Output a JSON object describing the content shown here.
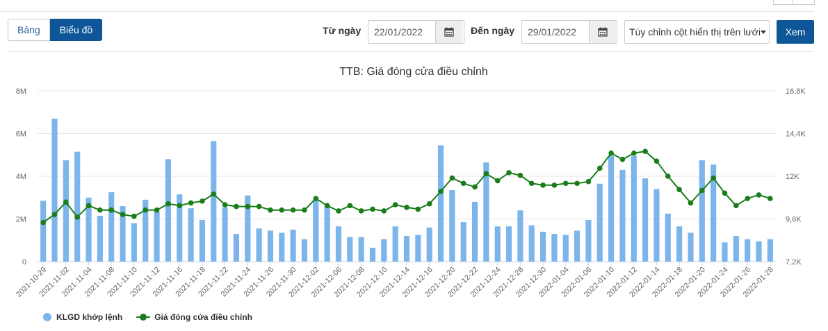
{
  "toolbar": {
    "tab_table": "Bảng",
    "tab_chart": "Biểu đồ",
    "from_label": "Từ ngày",
    "from_value": "22/01/2022",
    "to_label": "Đến ngày",
    "to_value": "29/01/2022",
    "column_select": "Tùy chỉnh cột hiển thị trên lưới",
    "view_button": "Xem"
  },
  "colors": {
    "accent": "#0e5697",
    "bar": "#7cb5ec",
    "line": "#1a7d1a"
  },
  "chart_data": {
    "type": "bar+line",
    "title": "TTB: Giá đóng cửa điều chỉnh",
    "y_left": {
      "min": 0,
      "max": 8000000,
      "ticks": [
        "0",
        "2M",
        "4M",
        "6M",
        "8M"
      ]
    },
    "y_right": {
      "min": 7200,
      "max": 16800,
      "ticks": [
        "7,2K",
        "9,6K",
        "12K",
        "14,4K",
        "16,8K"
      ]
    },
    "x_ticks": [
      "2021-10-29",
      "2021-11-02",
      "2021-11-04",
      "2021-11-08",
      "2021-11-10",
      "2021-11-12",
      "2021-11-16",
      "2021-11-18",
      "2021-11-22",
      "2021-11-24",
      "2021-11-26",
      "2021-11-30",
      "2021-12-02",
      "2021-12-06",
      "2021-12-08",
      "2021-12-10",
      "2021-12-14",
      "2021-12-16",
      "2021-12-20",
      "2021-12-22",
      "2021-12-24",
      "2021-12-28",
      "2021-12-30",
      "2022-01-04",
      "2022-01-06",
      "2022-01-10",
      "2022-01-12",
      "2022-01-14",
      "2022-01-18",
      "2022-01-20",
      "2022-01-24",
      "2022-01-26",
      "2022-01-28"
    ],
    "series": [
      {
        "name": "KLGD khớp lệnh",
        "type": "bar",
        "axis": "left",
        "values": [
          2850000,
          6700000,
          4750000,
          5150000,
          3000000,
          2150000,
          3250000,
          2600000,
          1800000,
          2900000,
          2350000,
          4800000,
          3150000,
          2500000,
          1950000,
          5650000,
          2550000,
          1300000,
          3100000,
          1550000,
          1450000,
          1350000,
          1500000,
          1050000,
          2900000,
          2600000,
          1650000,
          1150000,
          1150000,
          650000,
          1050000,
          1650000,
          1200000,
          1250000,
          1600000,
          5450000,
          3350000,
          1850000,
          2800000,
          4650000,
          1650000,
          1650000,
          2400000,
          1700000,
          1400000,
          1300000,
          1250000,
          1450000,
          1950000,
          3650000,
          4950000,
          4300000,
          4950000,
          3900000,
          3400000,
          2250000,
          1650000,
          1350000,
          4750000,
          4550000,
          900000,
          1200000,
          1050000,
          950000,
          1050000
        ]
      },
      {
        "name": "Giá đóng cửa điều chỉnh",
        "type": "line",
        "axis": "right",
        "values": [
          9400,
          9850,
          10550,
          9700,
          10350,
          10100,
          10100,
          9850,
          9750,
          10100,
          10100,
          10450,
          10350,
          10500,
          10600,
          11000,
          10400,
          10300,
          10300,
          10300,
          10100,
          10100,
          10100,
          10100,
          10750,
          10350,
          10050,
          10350,
          10050,
          10150,
          10050,
          10400,
          10250,
          10150,
          10450,
          11150,
          11900,
          11600,
          11400,
          12150,
          11750,
          12200,
          12050,
          11600,
          11500,
          11500,
          11600,
          11600,
          11700,
          12450,
          13300,
          12950,
          13300,
          13400,
          12850,
          12000,
          11250,
          10500,
          11200,
          11900,
          11050,
          10350,
          10750,
          10950,
          10750
        ]
      }
    ]
  }
}
